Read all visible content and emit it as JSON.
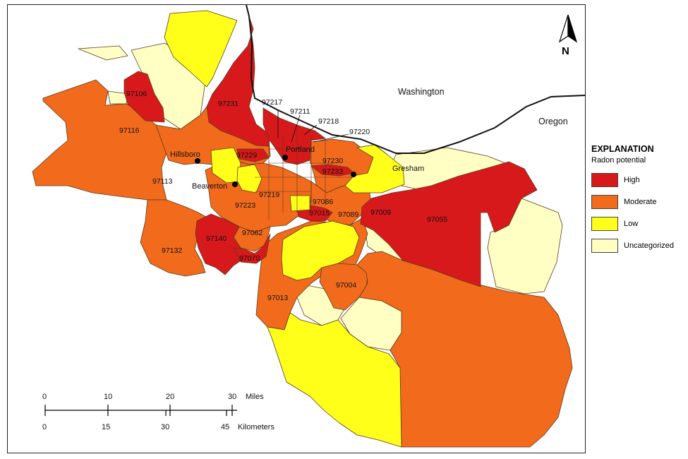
{
  "legend": {
    "title": "EXPLANATION",
    "subtitle": "Radon potential",
    "items": [
      {
        "label": "High",
        "color": "#d7191c"
      },
      {
        "label": "Moderate",
        "color": "#f26b1d"
      },
      {
        "label": "Low",
        "color": "#ffff1a"
      },
      {
        "label": "Uncategorized",
        "color": "#ffffc4"
      }
    ]
  },
  "colors": {
    "high": "#d7191c",
    "moderate": "#f26b1d",
    "low": "#ffff1a",
    "uncategorized": "#ffffc4",
    "boundary": "#5a3a1a",
    "state_line": "#111111"
  },
  "north_arrow": {
    "label": "N",
    "icon": "north-arrow-icon"
  },
  "regions": {
    "washington": "Washington",
    "oregon": "Oregon"
  },
  "cities": {
    "hillsboro": "Hillsboro",
    "beaverton": "Beaverton",
    "portland": "Portland",
    "gresham": "Gresham"
  },
  "zip_labels": {
    "z97106": "97106",
    "z97231": "97231",
    "z97217": "97217",
    "z97211": "97211",
    "z97218": "97218",
    "z97220": "97220",
    "z97116": "97116",
    "z97229": "97229",
    "z97230": "97230",
    "z97233": "97233",
    "z97113": "97113",
    "z97219": "97219",
    "z97086": "97086",
    "z97223": "97223",
    "z97015": "97015",
    "z97089": "97089",
    "z97009": "97009",
    "z97055": "97055",
    "z97062": "97062",
    "z97140": "97140",
    "z97132": "97132",
    "z97070": "97070",
    "z97013": "97013",
    "z97004": "97004"
  },
  "scale_bar": {
    "miles_ticks": [
      "0",
      "10",
      "20",
      "30"
    ],
    "miles_unit": "Miles",
    "km_ticks": [
      "0",
      "15",
      "30",
      "45"
    ],
    "km_unit": "Kilometers"
  }
}
